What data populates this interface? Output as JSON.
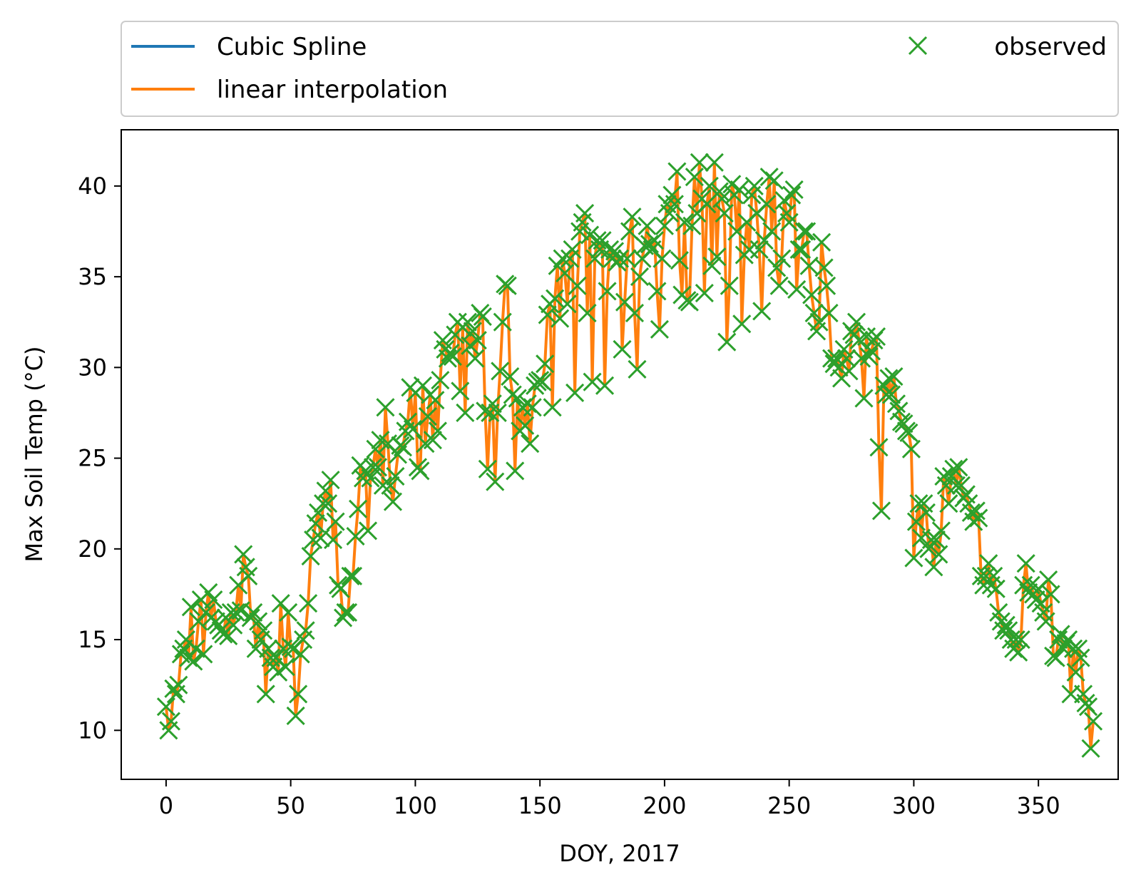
{
  "chart_data": {
    "type": "line",
    "title": "",
    "xlabel": "DOY, 2017",
    "ylabel": "Max Soil Temp (°C)",
    "xlim": [
      -18,
      382
    ],
    "ylim": [
      7.3,
      43.1
    ],
    "xticks": [
      0,
      50,
      100,
      150,
      200,
      250,
      300,
      350
    ],
    "yticks": [
      10,
      15,
      20,
      25,
      30,
      35,
      40
    ],
    "grid": false,
    "legend": {
      "placement": "top, above plot",
      "columns": 2
    },
    "series": [
      {
        "name": "Cubic Spline",
        "color": "#1f77b4",
        "style": "line"
      },
      {
        "name": "linear interpolation",
        "color": "#ff7f0e",
        "style": "line"
      },
      {
        "name": "observed",
        "color": "#2ca02c",
        "style": "x-marker"
      }
    ],
    "x_start": 0,
    "x_step": 1,
    "observed": [
      11.3,
      10.0,
      10.5,
      12.3,
      12.0,
      12.5,
      14.2,
      14.5,
      15.0,
      14.0,
      16.8,
      13.8,
      14.5,
      16.0,
      17.2,
      14.2,
      16.5,
      17.6,
      16.2,
      17.2,
      16.0,
      15.8,
      15.5,
      15.3,
      16.2,
      15.2,
      16.5,
      15.8,
      16.5,
      18.0,
      16.6,
      19.7,
      19.0,
      18.5,
      16.2,
      16.5,
      14.5,
      16.0,
      15.0,
      15.5,
      12.0,
      14.5,
      14.0,
      13.5,
      14.0,
      13.2,
      17.0,
      14.5,
      13.5,
      16.5,
      14.6,
      14.5,
      10.8,
      12.0,
      14.2,
      15.0,
      15.5,
      17.0,
      19.6,
      20.5,
      21.4,
      22.0,
      20.6,
      22.5,
      23.2,
      22.5,
      23.8,
      20.5,
      21.5,
      18.0,
      17.8,
      16.2,
      16.5,
      16.5,
      18.5,
      18.5,
      20.7,
      22.2,
      24.6,
      23.9,
      24.3,
      21.0,
      23.9,
      24.5,
      25.5,
      24.5,
      26.0,
      23.5,
      27.8,
      25.8,
      23.5,
      22.6,
      24.0,
      25.2,
      25.7,
      25.6,
      26.5,
      27.0,
      28.9,
      26.6,
      28.6,
      24.5,
      24.3,
      29.0,
      25.8,
      27.3,
      28.5,
      26.0,
      28.2,
      26.5,
      29.3,
      31.5,
      31.0,
      30.5,
      30.8,
      30.6,
      31.8,
      32.5,
      28.7,
      32.2,
      27.5,
      32.5,
      31.2,
      32.0,
      30.5,
      31.5,
      33.0,
      32.8,
      27.6,
      24.4,
      27.5,
      28.0,
      23.7,
      27.5,
      29.8,
      32.5,
      34.6,
      34.5,
      29.5,
      28.5,
      24.3,
      28.3,
      26.5,
      27.8,
      26.8,
      28.0,
      25.8,
      27.8,
      29.0,
      29.2,
      29.3,
      29.2,
      30.2,
      32.9,
      33.5,
      27.8,
      33.8,
      35.6,
      32.7,
      36.0,
      35.2,
      33.5,
      36.0,
      36.5,
      28.6,
      34.5,
      37.5,
      38.0,
      38.5,
      33.0,
      37.3,
      29.2,
      36.0,
      37.0,
      36.5,
      37.0,
      29.0,
      34.2,
      36.5,
      36.0,
      36.4,
      35.8,
      36.0,
      31.0,
      33.6,
      36.0,
      37.5,
      38.3,
      33.0,
      29.9,
      35.0,
      36.0,
      36.7,
      37.8,
      36.8,
      36.5,
      37.0,
      34.2,
      32.1,
      36.0,
      37.8,
      39.0,
      38.5,
      39.5,
      39.0,
      40.8,
      35.9,
      34.0,
      38.0,
      33.7,
      33.6,
      37.8,
      40.5,
      38.5,
      41.3,
      39.3,
      34.1,
      39.0,
      40.0,
      35.6,
      41.3,
      36.1,
      39.7,
      39.3,
      38.5,
      31.4,
      34.5,
      40.1,
      39.5,
      37.5,
      39.8,
      32.4,
      36.2,
      38.0,
      36.5,
      39.5,
      40.0,
      38.5,
      36.5,
      33.1,
      37.0,
      39.0,
      40.5,
      37.5,
      40.3,
      35.5,
      34.5,
      36.0,
      39.2,
      38.5,
      38.0,
      39.5,
      39.8,
      34.3,
      36.5,
      36.5,
      37.5,
      37.5,
      35.6,
      34.0,
      33.0,
      32.0,
      32.5,
      36.9,
      35.5,
      34.5,
      33.0,
      30.5,
      30.2,
      30.5,
      30.0,
      29.4,
      31.0,
      30.5,
      29.8,
      32.0,
      31.8,
      32.5,
      31.5,
      30.5,
      28.3,
      31.7,
      30.6,
      30.9,
      31.5,
      31.7,
      25.6,
      22.1,
      29.0,
      28.5,
      29.4,
      28.5,
      29.5,
      28.0,
      27.6,
      27.0,
      26.9,
      26.5,
      26.4,
      25.5,
      19.5,
      21.5,
      22.5,
      20.6,
      22.5,
      22.0,
      20.0,
      20.5,
      19.0,
      20.5,
      19.7,
      21.0,
      24.0,
      23.5,
      22.5,
      24.0,
      24.4,
      23.5,
      24.5,
      23.5,
      22.8,
      23.0,
      22.5,
      22.0,
      21.5,
      22.1,
      21.7,
      18.5,
      18.0,
      18.5,
      19.2,
      18.0,
      18.5,
      17.8,
      16.5,
      16.0,
      15.5,
      15.8,
      15.5,
      15.0,
      14.5,
      15.0,
      14.3,
      15.0,
      18.0,
      19.2,
      17.6,
      18.0,
      17.5,
      17.2,
      17.8,
      17.0,
      16.5,
      16.0,
      18.3,
      17.5,
      14.1,
      14.0,
      15.0,
      15.3,
      14.5,
      14.8,
      15.0,
      12.0,
      14.5,
      13.2,
      14.5,
      14.0,
      12.0,
      11.5,
      11.3,
      9.0,
      10.5
    ]
  },
  "legend_labels": {
    "cubic": "Cubic Spline",
    "linear": "linear interpolation",
    "observed": "observed"
  }
}
